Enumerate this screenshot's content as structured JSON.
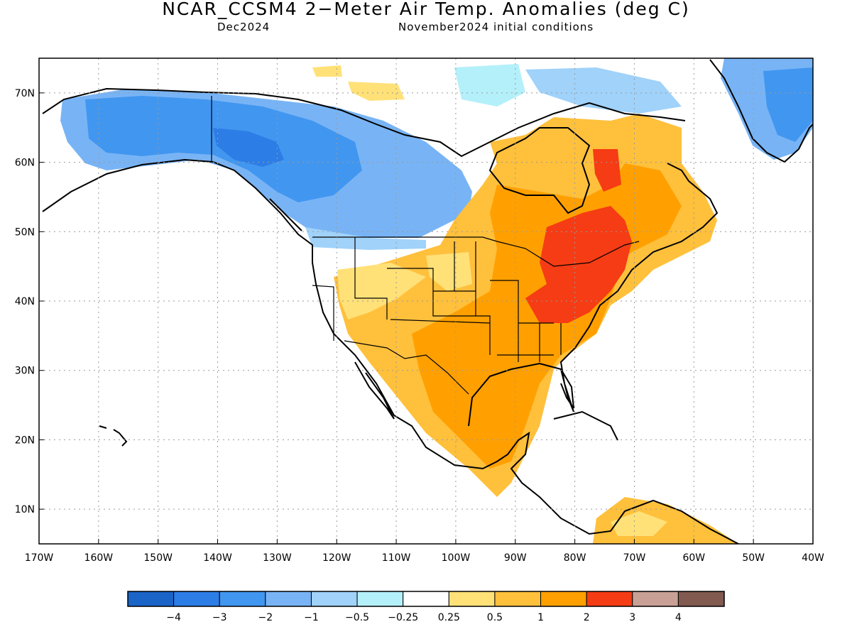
{
  "title": "NCAR_CCSM4 2−Meter Air Temp. Anomalies (deg C)",
  "subtitle_left": "Dec2024",
  "subtitle_right": "November2024 initial conditions",
  "map": {
    "lon_range": [
      -170,
      -40
    ],
    "lat_range": [
      5,
      75
    ],
    "lon_ticks": [
      "170W",
      "160W",
      "150W",
      "140W",
      "130W",
      "120W",
      "110W",
      "100W",
      "90W",
      "80W",
      "70W",
      "60W",
      "50W",
      "40W"
    ],
    "lat_ticks": [
      "10N",
      "20N",
      "30N",
      "40N",
      "50N",
      "60N",
      "70N"
    ],
    "grid": "dotted"
  },
  "legend": {
    "colors": [
      "#1a64c8",
      "#2d7de6",
      "#4196f0",
      "#78b4f5",
      "#a0d2fa",
      "#b4f0fa",
      "#ffffff",
      "#ffe178",
      "#ffc03c",
      "#ffa000",
      "#f53c14",
      "#c8a096",
      "#825a50"
    ],
    "labels": [
      "−4",
      "−3",
      "−2",
      "−1",
      "−0.5",
      "−0.25",
      "0.25",
      "0.5",
      "1",
      "2",
      "3",
      "4"
    ]
  }
}
